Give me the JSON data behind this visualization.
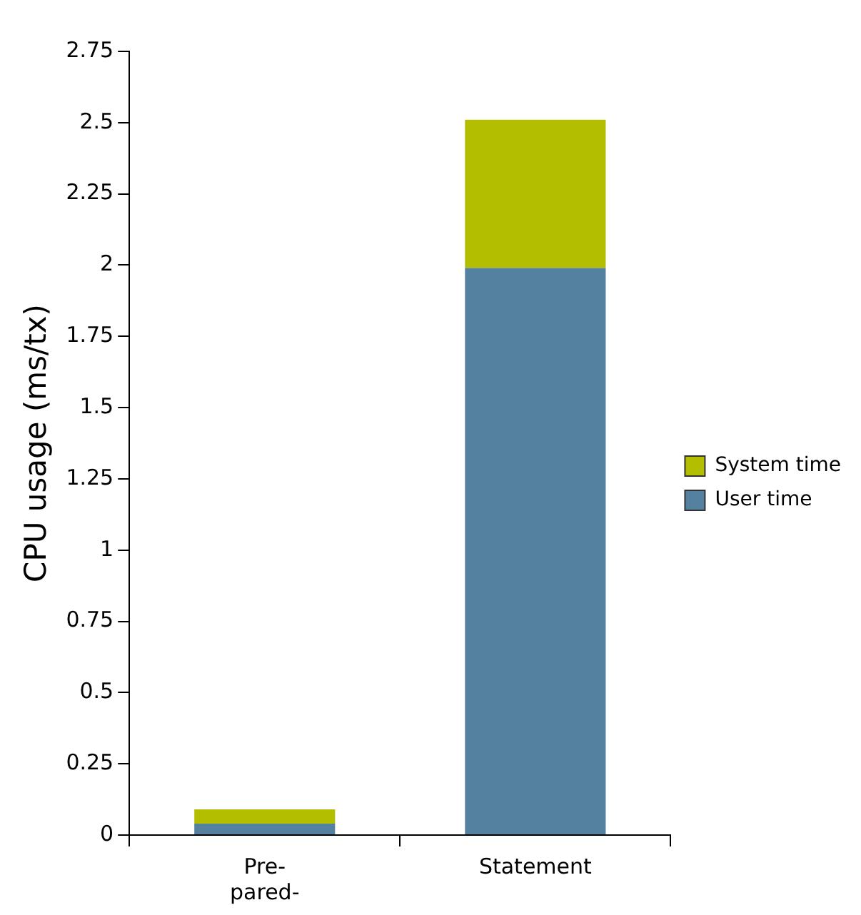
{
  "chart_data": {
    "type": "bar",
    "ylabel": "CPU usage (ms/tx)",
    "categories": [
      "Pre-pared-",
      "Statement"
    ],
    "stacked": true,
    "series": [
      {
        "name": "User time",
        "color": "#5581a0",
        "values": [
          0.04,
          1.99
        ]
      },
      {
        "name": "System time",
        "color": "#b3be00",
        "values": [
          0.05,
          0.52
        ]
      }
    ],
    "ylim": [
      0,
      2.75
    ],
    "yticks": [
      0,
      0.25,
      0.5,
      0.75,
      1,
      1.25,
      1.5,
      1.75,
      2,
      2.25,
      2.5,
      2.75
    ],
    "grid": false,
    "legend": "right"
  }
}
